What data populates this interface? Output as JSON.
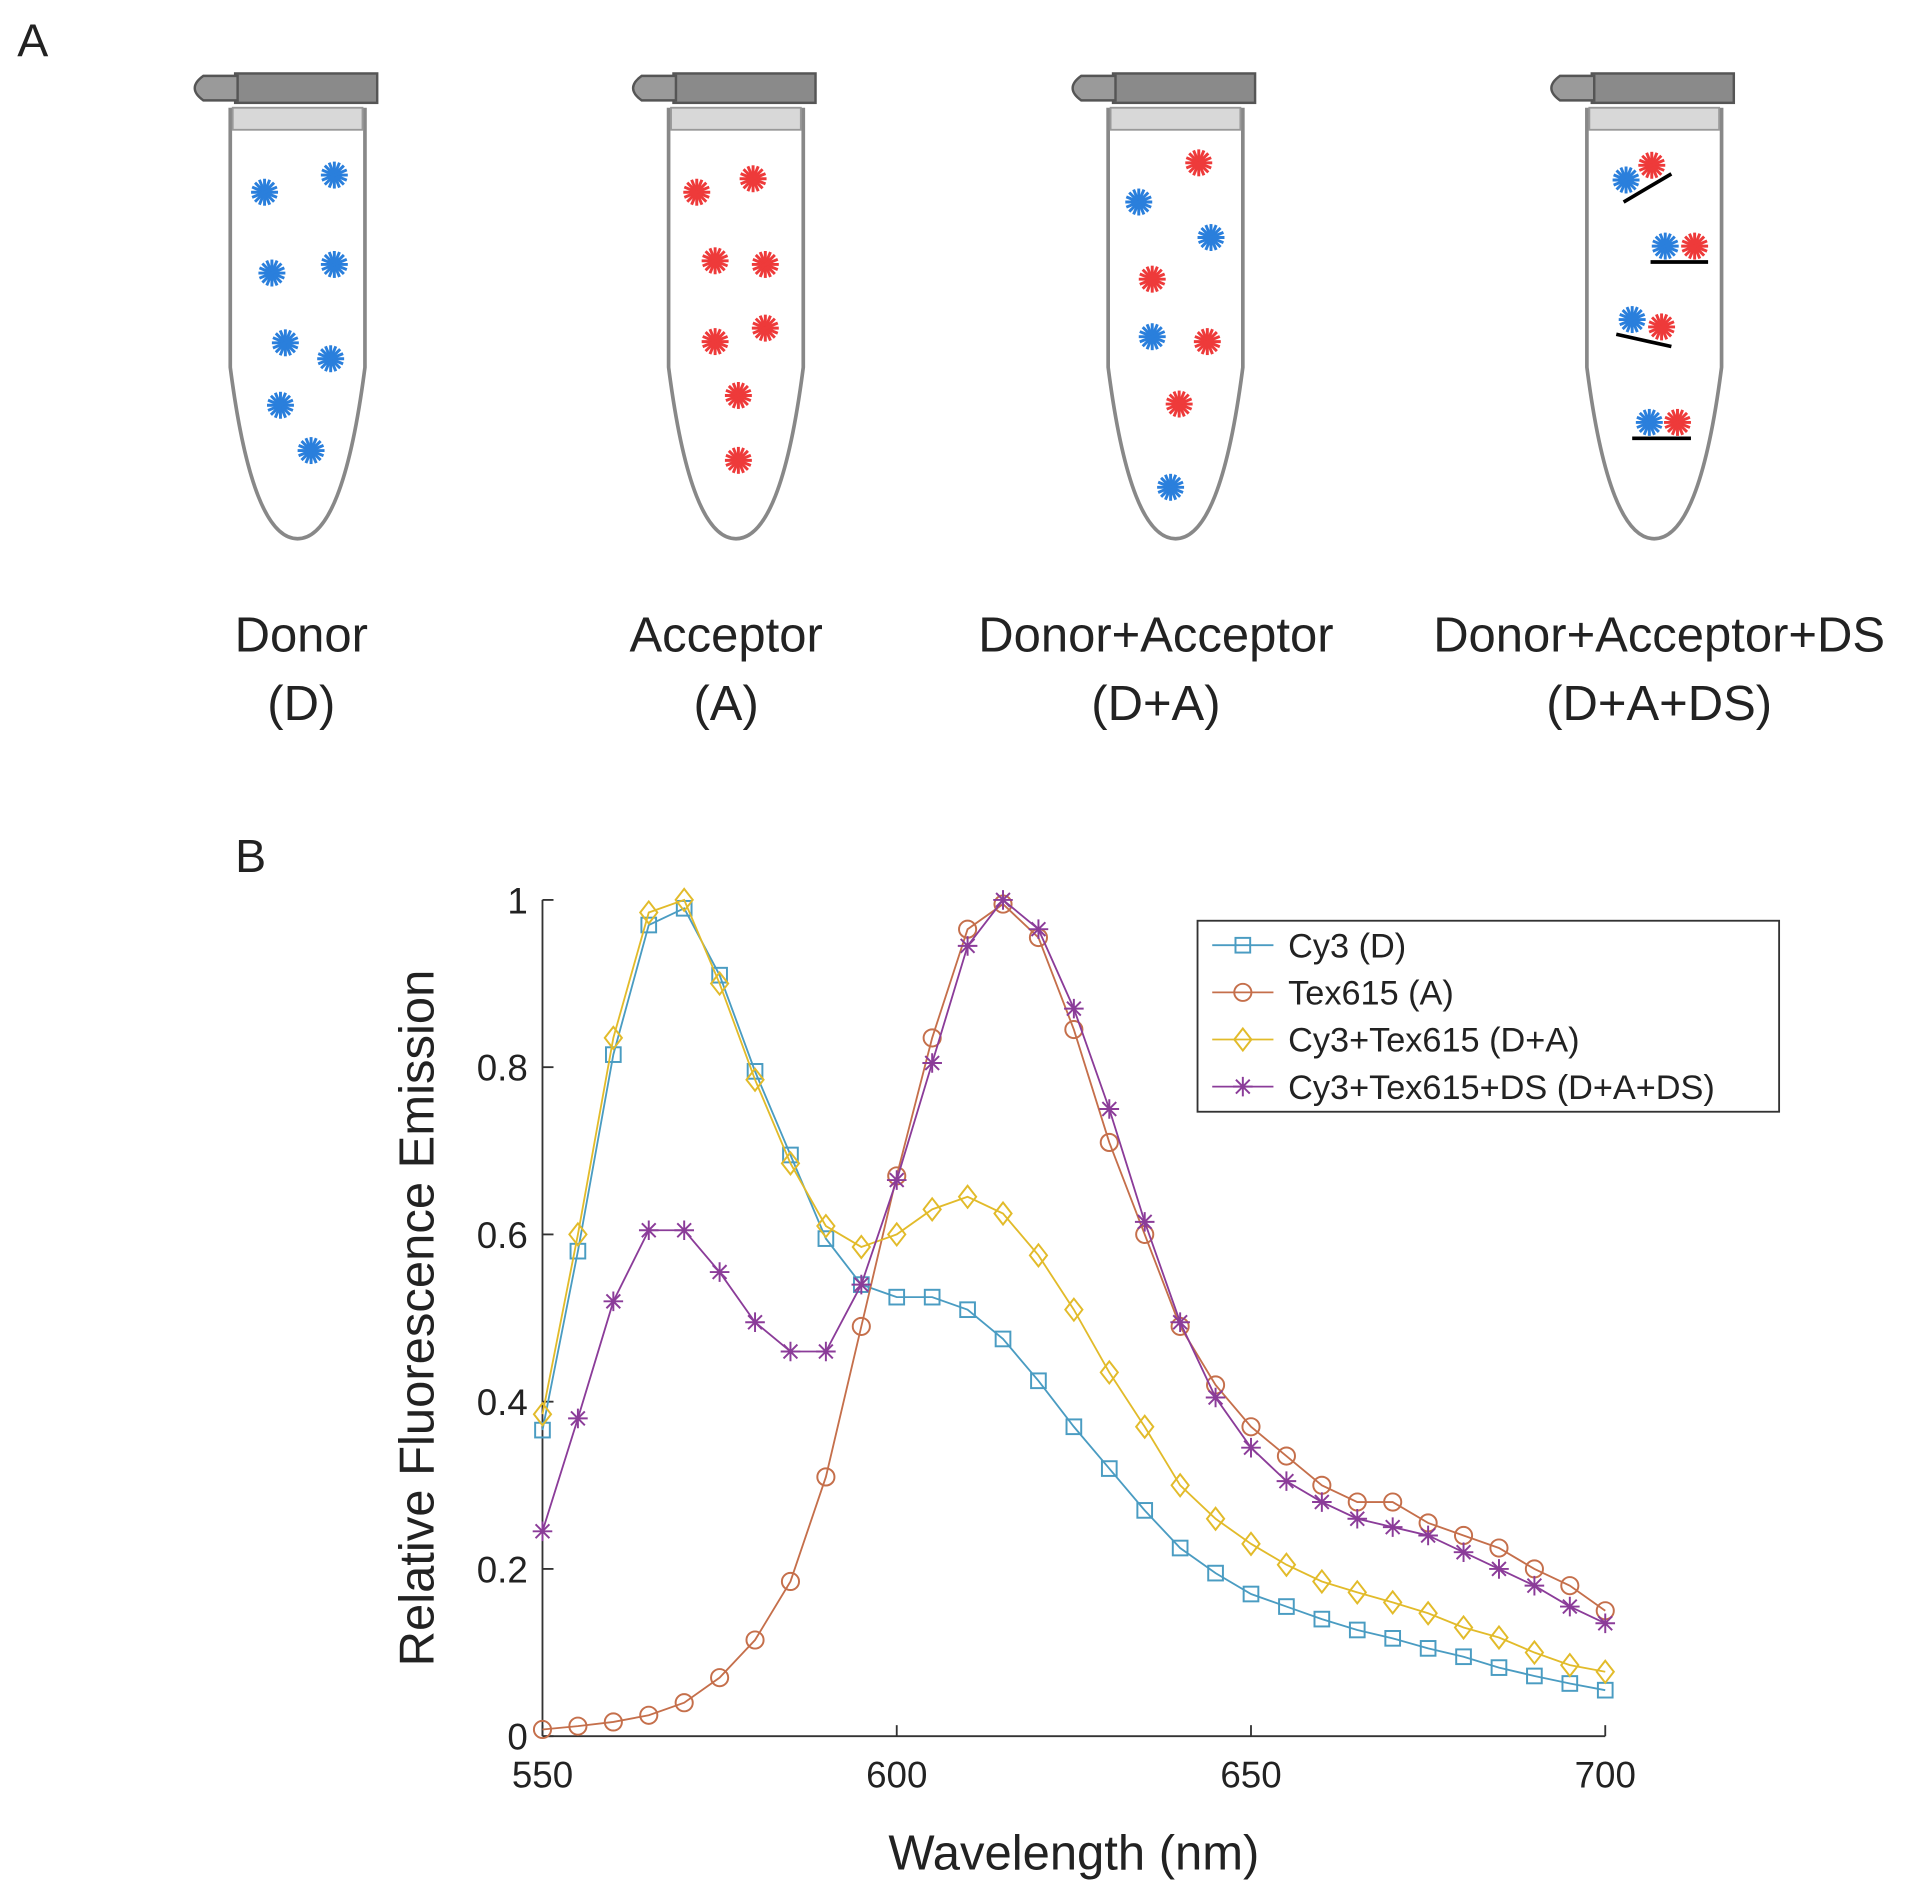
{
  "panel_a": {
    "label": "A",
    "tubes": [
      {
        "name": "Donor",
        "abbr": "(D)"
      },
      {
        "name": "Acceptor",
        "abbr": "(A)"
      },
      {
        "name": "Donor+Acceptor",
        "abbr": "(D+A)"
      },
      {
        "name": "Donor+Acceptor+DS",
        "abbr": "(D+A+DS)"
      }
    ]
  },
  "panel_b": {
    "label": "B"
  },
  "chart_data": {
    "type": "line",
    "xlabel": "Wavelength (nm)",
    "ylabel": "Relative Fluorescence Emission",
    "x": [
      550,
      555,
      560,
      565,
      570,
      575,
      580,
      585,
      590,
      595,
      600,
      605,
      610,
      615,
      620,
      625,
      630,
      635,
      640,
      645,
      650,
      655,
      660,
      665,
      670,
      675,
      680,
      685,
      690,
      695,
      700
    ],
    "xlim": [
      550,
      700
    ],
    "xticks": [
      550,
      600,
      650,
      700
    ],
    "ylim": [
      0,
      1
    ],
    "yticks": [
      0,
      0.2,
      0.4,
      0.6,
      0.8,
      1
    ],
    "legend": "upper right",
    "series": [
      {
        "name": "Cy3 (D)",
        "color": "#4a9cc2",
        "marker": "square",
        "values": [
          0.366,
          0.58,
          0.815,
          0.97,
          0.99,
          0.91,
          0.795,
          0.695,
          0.595,
          0.54,
          0.525,
          0.525,
          0.51,
          0.475,
          0.425,
          0.37,
          0.32,
          0.27,
          0.225,
          0.195,
          0.17,
          0.155,
          0.14,
          0.127,
          0.117,
          0.105,
          0.095,
          0.082,
          0.072,
          0.063,
          0.055
        ]
      },
      {
        "name": "Tex615 (A)",
        "color": "#c56f4b",
        "marker": "circle",
        "values": [
          0.008,
          0.012,
          0.017,
          0.025,
          0.04,
          0.07,
          0.115,
          0.185,
          0.31,
          0.49,
          0.67,
          0.835,
          0.965,
          0.995,
          0.955,
          0.845,
          0.71,
          0.6,
          0.49,
          0.42,
          0.37,
          0.335,
          0.3,
          0.28,
          0.28,
          0.255,
          0.24,
          0.225,
          0.2,
          0.18,
          0.15
        ]
      },
      {
        "name": "Cy3+Tex615 (D+A)",
        "color": "#e2bb2a",
        "marker": "diamond",
        "values": [
          0.385,
          0.6,
          0.835,
          0.985,
          1.0,
          0.9,
          0.785,
          0.685,
          0.61,
          0.585,
          0.6,
          0.63,
          0.645,
          0.625,
          0.575,
          0.51,
          0.435,
          0.37,
          0.3,
          0.26,
          0.23,
          0.205,
          0.185,
          0.172,
          0.16,
          0.147,
          0.13,
          0.118,
          0.1,
          0.085,
          0.077
        ]
      },
      {
        "name": "Cy3+Tex615+DS (D+A+DS)",
        "color": "#8b3c99",
        "marker": "star",
        "values": [
          0.245,
          0.38,
          0.52,
          0.605,
          0.605,
          0.555,
          0.495,
          0.46,
          0.46,
          0.54,
          0.665,
          0.805,
          0.945,
          1.0,
          0.965,
          0.87,
          0.75,
          0.615,
          0.495,
          0.405,
          0.345,
          0.305,
          0.28,
          0.26,
          0.25,
          0.24,
          0.22,
          0.2,
          0.18,
          0.155,
          0.135
        ]
      }
    ]
  }
}
